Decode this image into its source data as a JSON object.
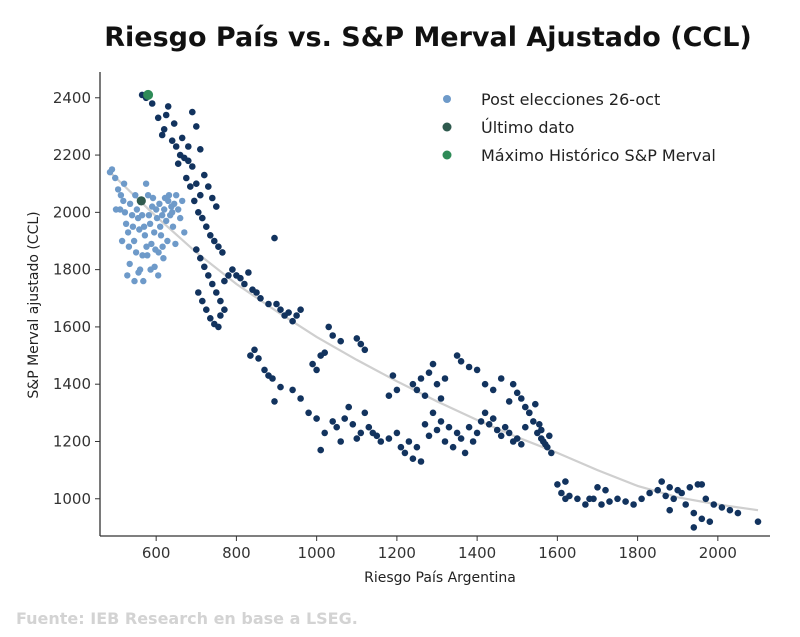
{
  "source_note": "Fuente: IEB Research en base a LSEG.",
  "colors": {
    "main": "#12335e",
    "post": "#6e9ac9",
    "ultimo": "#2f5a4e",
    "maximo": "#2e8b57",
    "trend": "#cfcfcf"
  },
  "chart_data": {
    "type": "scatter",
    "title": "Riesgo País vs. S&P Merval Ajustado (CCL)",
    "xlabel": "Riesgo País Argentina",
    "ylabel": "S&P Merval ajustado (CCL)",
    "xlim": [
      460,
      2130
    ],
    "ylim": [
      870,
      2490
    ],
    "xticks": [
      600,
      800,
      1000,
      1200,
      1400,
      1600,
      1800,
      2000
    ],
    "yticks": [
      1000,
      1200,
      1400,
      1600,
      1800,
      2000,
      2200,
      2400
    ],
    "grid": false,
    "legend_position": "top-right",
    "legend": [
      {
        "label": "Post elecciones 26-oct",
        "color": "#6e9ac9"
      },
      {
        "label": "Último dato",
        "color": "#2f5a4e"
      },
      {
        "label": "Máximo Histórico S&P Merval",
        "color": "#2e8b57"
      }
    ],
    "trend_line": {
      "x": [
        485,
        600,
        700,
        800,
        900,
        1000,
        1100,
        1200,
        1300,
        1400,
        1500,
        1600,
        1700,
        1800,
        1900,
        2000,
        2100
      ],
      "y": [
        2140,
        1985,
        1860,
        1750,
        1655,
        1565,
        1485,
        1410,
        1340,
        1275,
        1215,
        1160,
        1100,
        1045,
        1005,
        980,
        960
      ]
    },
    "series": [
      {
        "name": "Post elecciones 26-oct",
        "points": [
          [
            485,
            2140
          ],
          [
            490,
            2150
          ],
          [
            498,
            2120
          ],
          [
            505,
            2080
          ],
          [
            512,
            2060
          ],
          [
            518,
            2040
          ],
          [
            522,
            2000
          ],
          [
            525,
            1960
          ],
          [
            530,
            1930
          ],
          [
            535,
            2030
          ],
          [
            540,
            1990
          ],
          [
            542,
            1950
          ],
          [
            545,
            1900
          ],
          [
            548,
            2060
          ],
          [
            550,
            1860
          ],
          [
            552,
            2010
          ],
          [
            555,
            1980
          ],
          [
            558,
            1940
          ],
          [
            560,
            1800
          ],
          [
            562,
            2040
          ],
          [
            565,
            1990
          ],
          [
            568,
            1760
          ],
          [
            570,
            1950
          ],
          [
            572,
            1920
          ],
          [
            575,
            2100
          ],
          [
            578,
            1850
          ],
          [
            580,
            2060
          ],
          [
            582,
            1990
          ],
          [
            585,
            1960
          ],
          [
            588,
            1890
          ],
          [
            590,
            2020
          ],
          [
            592,
            2050
          ],
          [
            595,
            1930
          ],
          [
            598,
            1870
          ],
          [
            600,
            2010
          ],
          [
            602,
            1980
          ],
          [
            605,
            1780
          ],
          [
            608,
            2030
          ],
          [
            610,
            1950
          ],
          [
            612,
            1920
          ],
          [
            615,
            1990
          ],
          [
            618,
            1840
          ],
          [
            620,
            2010
          ],
          [
            622,
            2050
          ],
          [
            625,
            1970
          ],
          [
            628,
            1900
          ],
          [
            630,
            2040
          ],
          [
            632,
            2060
          ],
          [
            635,
            1990
          ],
          [
            638,
            2020
          ],
          [
            640,
            2000
          ],
          [
            642,
            1950
          ],
          [
            645,
            2030
          ],
          [
            648,
            1890
          ],
          [
            650,
            2060
          ],
          [
            655,
            2010
          ],
          [
            660,
            1980
          ],
          [
            665,
            2040
          ],
          [
            670,
            1930
          ],
          [
            528,
            1780
          ],
          [
            534,
            1820
          ],
          [
            546,
            1760
          ],
          [
            556,
            1790
          ],
          [
            566,
            1850
          ],
          [
            576,
            1880
          ],
          [
            586,
            1800
          ],
          [
            596,
            1810
          ],
          [
            606,
            1860
          ],
          [
            616,
            1880
          ],
          [
            520,
            2100
          ],
          [
            510,
            2010
          ],
          [
            500,
            2010
          ],
          [
            515,
            1900
          ],
          [
            532,
            1880
          ]
        ]
      },
      {
        "name": "Histórico",
        "points": [
          [
            565,
            2410
          ],
          [
            575,
            2400
          ],
          [
            590,
            2380
          ],
          [
            605,
            2330
          ],
          [
            620,
            2290
          ],
          [
            640,
            2250
          ],
          [
            650,
            2230
          ],
          [
            660,
            2200
          ],
          [
            670,
            2190
          ],
          [
            680,
            2180
          ],
          [
            690,
            2160
          ],
          [
            700,
            2100
          ],
          [
            710,
            2060
          ],
          [
            720,
            2130
          ],
          [
            730,
            2090
          ],
          [
            740,
            2050
          ],
          [
            750,
            2020
          ],
          [
            690,
            2350
          ],
          [
            700,
            2300
          ],
          [
            710,
            2220
          ],
          [
            680,
            2230
          ],
          [
            665,
            2260
          ],
          [
            645,
            2310
          ],
          [
            630,
            2370
          ],
          [
            625,
            2340
          ],
          [
            615,
            2270
          ],
          [
            655,
            2170
          ],
          [
            675,
            2120
          ],
          [
            685,
            2090
          ],
          [
            695,
            2040
          ],
          [
            705,
            2000
          ],
          [
            715,
            1980
          ],
          [
            725,
            1950
          ],
          [
            735,
            1920
          ],
          [
            745,
            1900
          ],
          [
            755,
            1880
          ],
          [
            765,
            1860
          ],
          [
            700,
            1870
          ],
          [
            710,
            1840
          ],
          [
            720,
            1810
          ],
          [
            730,
            1780
          ],
          [
            740,
            1750
          ],
          [
            750,
            1720
          ],
          [
            760,
            1690
          ],
          [
            770,
            1660
          ],
          [
            705,
            1720
          ],
          [
            715,
            1690
          ],
          [
            725,
            1660
          ],
          [
            735,
            1630
          ],
          [
            745,
            1610
          ],
          [
            755,
            1600
          ],
          [
            760,
            1640
          ],
          [
            770,
            1760
          ],
          [
            780,
            1780
          ],
          [
            790,
            1800
          ],
          [
            800,
            1780
          ],
          [
            810,
            1770
          ],
          [
            820,
            1750
          ],
          [
            830,
            1790
          ],
          [
            840,
            1730
          ],
          [
            850,
            1720
          ],
          [
            860,
            1700
          ],
          [
            880,
            1680
          ],
          [
            895,
            1910
          ],
          [
            900,
            1680
          ],
          [
            910,
            1660
          ],
          [
            920,
            1640
          ],
          [
            930,
            1650
          ],
          [
            940,
            1620
          ],
          [
            950,
            1640
          ],
          [
            960,
            1660
          ],
          [
            835,
            1500
          ],
          [
            845,
            1520
          ],
          [
            855,
            1490
          ],
          [
            870,
            1450
          ],
          [
            880,
            1430
          ],
          [
            890,
            1420
          ],
          [
            895,
            1340
          ],
          [
            910,
            1390
          ],
          [
            940,
            1380
          ],
          [
            960,
            1350
          ],
          [
            980,
            1300
          ],
          [
            1000,
            1280
          ],
          [
            1010,
            1170
          ],
          [
            1020,
            1230
          ],
          [
            1040,
            1270
          ],
          [
            1050,
            1250
          ],
          [
            1060,
            1200
          ],
          [
            1070,
            1280
          ],
          [
            1080,
            1320
          ],
          [
            1090,
            1260
          ],
          [
            1100,
            1210
          ],
          [
            1110,
            1230
          ],
          [
            1120,
            1300
          ],
          [
            1130,
            1250
          ],
          [
            1140,
            1230
          ],
          [
            1150,
            1220
          ],
          [
            1160,
            1200
          ],
          [
            1180,
            1210
          ],
          [
            1200,
            1230
          ],
          [
            1210,
            1180
          ],
          [
            1220,
            1160
          ],
          [
            1230,
            1200
          ],
          [
            1240,
            1140
          ],
          [
            1250,
            1180
          ],
          [
            1260,
            1130
          ],
          [
            1270,
            1260
          ],
          [
            1280,
            1220
          ],
          [
            1290,
            1300
          ],
          [
            1300,
            1240
          ],
          [
            1310,
            1270
          ],
          [
            1320,
            1200
          ],
          [
            1330,
            1250
          ],
          [
            1340,
            1180
          ],
          [
            1350,
            1230
          ],
          [
            1360,
            1210
          ],
          [
            1370,
            1160
          ],
          [
            1380,
            1250
          ],
          [
            1390,
            1200
          ],
          [
            1400,
            1230
          ],
          [
            1410,
            1270
          ],
          [
            1420,
            1300
          ],
          [
            1430,
            1260
          ],
          [
            1440,
            1280
          ],
          [
            1450,
            1240
          ],
          [
            1460,
            1220
          ],
          [
            1470,
            1250
          ],
          [
            1480,
            1230
          ],
          [
            1490,
            1200
          ],
          [
            1500,
            1210
          ],
          [
            1510,
            1190
          ],
          [
            1520,
            1250
          ],
          [
            1530,
            1300
          ],
          [
            1540,
            1270
          ],
          [
            1550,
            1230
          ],
          [
            1560,
            1210
          ],
          [
            1570,
            1190
          ],
          [
            1580,
            1220
          ],
          [
            1240,
            1400
          ],
          [
            1250,
            1380
          ],
          [
            1260,
            1420
          ],
          [
            1270,
            1360
          ],
          [
            1280,
            1440
          ],
          [
            1290,
            1470
          ],
          [
            1300,
            1400
          ],
          [
            1310,
            1350
          ],
          [
            1320,
            1420
          ],
          [
            1200,
            1380
          ],
          [
            1190,
            1430
          ],
          [
            1180,
            1360
          ],
          [
            1350,
            1500
          ],
          [
            1360,
            1480
          ],
          [
            1380,
            1460
          ],
          [
            1400,
            1450
          ],
          [
            1420,
            1400
          ],
          [
            1440,
            1380
          ],
          [
            1460,
            1420
          ],
          [
            1480,
            1340
          ],
          [
            1490,
            1400
          ],
          [
            1500,
            1370
          ],
          [
            1510,
            1350
          ],
          [
            1520,
            1320
          ],
          [
            1530,
            1300
          ],
          [
            1545,
            1330
          ],
          [
            1555,
            1260
          ],
          [
            1560,
            1240
          ],
          [
            1565,
            1200
          ],
          [
            1575,
            1180
          ],
          [
            1585,
            1160
          ],
          [
            1100,
            1560
          ],
          [
            1110,
            1540
          ],
          [
            1120,
            1520
          ],
          [
            1060,
            1550
          ],
          [
            1040,
            1570
          ],
          [
            1030,
            1600
          ],
          [
            1010,
            1500
          ],
          [
            1000,
            1450
          ],
          [
            990,
            1470
          ],
          [
            1020,
            1510
          ],
          [
            1600,
            1050
          ],
          [
            1610,
            1020
          ],
          [
            1620,
            1000
          ],
          [
            1630,
            1010
          ],
          [
            1650,
            1000
          ],
          [
            1670,
            980
          ],
          [
            1690,
            1000
          ],
          [
            1710,
            980
          ],
          [
            1730,
            990
          ],
          [
            1750,
            1000
          ],
          [
            1770,
            990
          ],
          [
            1790,
            980
          ],
          [
            1810,
            1000
          ],
          [
            1830,
            1020
          ],
          [
            1850,
            1030
          ],
          [
            1870,
            1010
          ],
          [
            1890,
            1000
          ],
          [
            1910,
            1020
          ],
          [
            1930,
            1040
          ],
          [
            1950,
            1050
          ],
          [
            1970,
            1000
          ],
          [
            1990,
            980
          ],
          [
            2010,
            970
          ],
          [
            2030,
            960
          ],
          [
            2050,
            950
          ],
          [
            1860,
            1060
          ],
          [
            1880,
            1040
          ],
          [
            1900,
            1030
          ],
          [
            1920,
            980
          ],
          [
            1940,
            950
          ],
          [
            1960,
            930
          ],
          [
            1980,
            920
          ],
          [
            1700,
            1040
          ],
          [
            1720,
            1030
          ],
          [
            1680,
            1000
          ],
          [
            1620,
            1060
          ],
          [
            2100,
            920
          ],
          [
            1940,
            900
          ],
          [
            1880,
            960
          ],
          [
            1960,
            1050
          ]
        ]
      },
      {
        "name": "Último dato",
        "points": [
          [
            563,
            2040
          ]
        ]
      },
      {
        "name": "Máximo Histórico S&P Merval",
        "points": [
          [
            580,
            2410
          ]
        ]
      }
    ]
  }
}
